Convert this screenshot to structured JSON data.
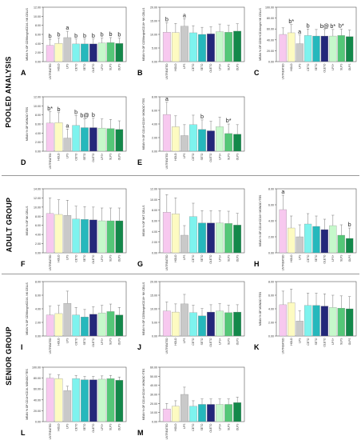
{
  "groups": [
    {
      "label": "POOLED ANALYSIS"
    },
    {
      "label": "ADULT GROUP"
    },
    {
      "label": "SENIOR GROUP"
    }
  ],
  "colors": [
    "#f7c8ef",
    "#fdfbc1",
    "#c9c9c9",
    "#7ef3ee",
    "#26b8bc",
    "#23277a",
    "#c6f8cb",
    "#54c777",
    "#13884a"
  ],
  "categories": [
    "UNTREATED",
    "HOLD",
    "LPS",
    "CETO",
    "SETO",
    "OLETO",
    "LPS+",
    "SLPS",
    "OLPS"
  ],
  "chart_data": [
    {
      "type": "bar",
      "letter": "A",
      "ylabel": "MEAN % OF CD56bright/CD16- NK CELLS",
      "ylim": [
        0,
        12
      ],
      "ticks": [
        "0.00",
        "2.00",
        "4.00",
        "6.00",
        "8.00",
        "10.00",
        "12.00"
      ],
      "values": [
        3.6,
        4.0,
        5.3,
        3.9,
        3.9,
        3.9,
        4.1,
        4.2,
        4.0
      ],
      "errors": [
        1.3,
        1.2,
        1.4,
        1.1,
        1.1,
        1.1,
        1.1,
        1.1,
        1.2
      ],
      "annotations": [
        "b",
        "b",
        "a",
        "b",
        "b",
        "b",
        "b",
        "b",
        "b"
      ]
    },
    {
      "type": "bar",
      "letter": "B",
      "ylabel": "MEAN % OF CD56bright/CD16+ NK CELLS",
      "ylim": [
        0,
        20
      ],
      "ticks": [
        "0.00",
        "5.00",
        "10.00",
        "15.00",
        "20.00"
      ],
      "values": [
        10.8,
        10.7,
        13.0,
        10.6,
        10.0,
        10.2,
        11.0,
        10.8,
        11.2
      ],
      "errors": [
        3.5,
        3.3,
        2.8,
        2.6,
        2.6,
        2.6,
        2.8,
        2.5,
        2.7
      ],
      "annotations": [
        "b",
        "",
        "a",
        "",
        "",
        "",
        "",
        "",
        ""
      ]
    },
    {
      "type": "bar",
      "letter": "C",
      "ylabel": "MEAN % OF CD56+CD16bright NK CELLS",
      "ylim": [
        0,
        100
      ],
      "ticks": [
        "0.00",
        "20.00",
        "40.00",
        "60.00",
        "80.00",
        "100.00"
      ],
      "values": [
        50,
        53,
        33,
        48,
        47,
        47,
        47,
        48,
        46
      ],
      "errors": [
        12,
        15,
        16,
        12,
        12,
        12,
        12,
        12,
        12
      ],
      "annotations": [
        "",
        "b*",
        "a",
        "b",
        "",
        "b@",
        "b*",
        "b*",
        ""
      ]
    },
    {
      "type": "bar",
      "letter": "D",
      "ylabel": "MEAN % OF MONOCYTES",
      "ylim": [
        0,
        12
      ],
      "ticks": [
        "0.00",
        "2.00",
        "4.00",
        "6.00",
        "8.00",
        "10.00",
        "12.00"
      ],
      "values": [
        6.2,
        6.3,
        2.9,
        5.7,
        5.2,
        5.2,
        5.1,
        5.0,
        4.8
      ],
      "errors": [
        2.5,
        2.2,
        2.0,
        2.2,
        2.0,
        2.1,
        2.0,
        2.0,
        1.9
      ],
      "annotations": [
        "b*",
        "b",
        "a",
        "b",
        "b@",
        "b",
        "",
        "",
        ""
      ]
    },
    {
      "type": "bar",
      "letter": "E",
      "ylabel": "MEAN % OF CD14+CD16+ MONOCYTES",
      "ylim": [
        0,
        8
      ],
      "ticks": [
        "0.00",
        "2.00",
        "4.00",
        "6.00",
        "8.00"
      ],
      "values": [
        5.4,
        3.6,
        2.3,
        3.9,
        3.2,
        3.0,
        3.6,
        2.6,
        2.5
      ],
      "errors": [
        1.8,
        1.6,
        1.6,
        1.4,
        1.4,
        1.4,
        1.4,
        1.4,
        1.4
      ],
      "annotations": [
        "a",
        "",
        "",
        "",
        "b",
        "",
        "",
        "b*",
        ""
      ]
    },
    {
      "type": "bar",
      "letter": "F",
      "ylabel": "MEAN % OF NK CELLS",
      "ylim": [
        0,
        14
      ],
      "ticks": [
        "0.00",
        "2.00",
        "4.00",
        "6.00",
        "8.00",
        "10.00",
        "12.00",
        "14.00"
      ],
      "values": [
        8.6,
        8.4,
        8.2,
        7.4,
        7.3,
        7.2,
        7.0,
        7.0,
        7.0
      ],
      "errors": [
        3.4,
        3.2,
        3.3,
        2.8,
        2.8,
        2.8,
        2.8,
        2.8,
        2.8
      ],
      "annotations": [
        "",
        "",
        "",
        "",
        "",
        "",
        "",
        "",
        ""
      ]
    },
    {
      "type": "bar",
      "letter": "G",
      "ylabel": "MEAN % OF NKT CELLS",
      "ylim": [
        0,
        12
      ],
      "ticks": [
        "0.00",
        "2.00",
        "4.00",
        "6.00",
        "8.00",
        "10.00",
        "12.00"
      ],
      "values": [
        7.6,
        7.3,
        3.3,
        6.8,
        5.6,
        5.6,
        5.6,
        5.5,
        5.2
      ],
      "errors": [
        3.3,
        3.0,
        1.8,
        2.5,
        2.3,
        2.3,
        2.3,
        2.3,
        2.2
      ],
      "annotations": [
        "",
        "",
        "",
        "",
        "",
        "",
        "",
        "",
        ""
      ]
    },
    {
      "type": "bar",
      "letter": "H",
      "ylabel": "MEAN % OF CD14+CD16+ MONOCYTES",
      "ylim": [
        0,
        8
      ],
      "ticks": [
        "0.00",
        "2.00",
        "4.00",
        "6.00",
        "8.00"
      ],
      "values": [
        5.4,
        3.1,
        2.0,
        3.6,
        3.3,
        2.9,
        3.4,
        2.2,
        1.8
      ],
      "errors": [
        1.8,
        1.5,
        1.5,
        1.3,
        1.3,
        1.3,
        1.3,
        1.3,
        1.3
      ],
      "annotations": [
        "a",
        "",
        "",
        "",
        "",
        "",
        "",
        "",
        "b"
      ]
    },
    {
      "type": "bar",
      "letter": "I",
      "ylabel": "MEAN % OF CD56bright/CD16- NK CELLS",
      "ylim": [
        0,
        8
      ],
      "ticks": [
        "0.00",
        "2.00",
        "4.00",
        "6.00",
        "8.00"
      ],
      "values": [
        3.1,
        3.3,
        4.8,
        3.1,
        2.8,
        3.2,
        3.4,
        3.6,
        3.1
      ],
      "errors": [
        1.3,
        1.2,
        1.8,
        1.1,
        1.1,
        1.1,
        1.1,
        1.1,
        1.1
      ],
      "annotations": [
        "",
        "",
        "",
        "",
        "",
        "",
        "",
        "",
        ""
      ]
    },
    {
      "type": "bar",
      "letter": "J",
      "ylabel": "MEAN % OF CD56bright/CD16+ NK CELLS",
      "ylim": [
        0,
        20
      ],
      "ticks": [
        "0.00",
        "5.00",
        "10.00",
        "15.00",
        "20.00"
      ],
      "values": [
        9.2,
        8.8,
        11.8,
        8.6,
        7.4,
        8.8,
        9.2,
        8.6,
        8.8
      ],
      "errors": [
        3.3,
        3.0,
        3.5,
        2.7,
        2.7,
        2.7,
        2.7,
        2.7,
        2.7
      ],
      "annotations": [
        "",
        "",
        "",
        "",
        "",
        "",
        "",
        "",
        ""
      ]
    },
    {
      "type": "bar",
      "letter": "K",
      "ylabel": "MEAN % OF MONOCYTES",
      "ylim": [
        0,
        8
      ],
      "ticks": [
        "0.00",
        "2.00",
        "4.00",
        "6.00",
        "8.00"
      ],
      "values": [
        4.6,
        4.9,
        2.2,
        4.5,
        4.5,
        4.4,
        4.2,
        4.1,
        4.0
      ],
      "errors": [
        2.0,
        2.0,
        1.5,
        1.8,
        1.8,
        1.8,
        1.8,
        1.8,
        1.8
      ],
      "annotations": [
        "",
        "",
        "",
        "",
        "",
        "",
        "",
        "",
        ""
      ]
    },
    {
      "type": "bar",
      "letter": "L",
      "ylabel": "MEAN % OF CD14+CD16- MONOCYTES",
      "ylim": [
        0,
        100
      ],
      "ticks": [
        "0.00",
        "20.00",
        "40.00",
        "60.00",
        "80.00",
        "100.00"
      ],
      "values": [
        80,
        79,
        57,
        79,
        77,
        77,
        78,
        79,
        76
      ],
      "errors": [
        7,
        7,
        8,
        6,
        6,
        6,
        6,
        6,
        6
      ],
      "annotations": [
        "",
        "",
        "",
        "",
        "",
        "",
        "",
        "",
        ""
      ]
    },
    {
      "type": "bar",
      "letter": "M",
      "ylabel": "MEAN % OF CD14+CD16+ MONOCYTES",
      "ylim": [
        0,
        60
      ],
      "ticks": [
        "0.00",
        "10.00",
        "20.00",
        "30.00",
        "40.00",
        "50.00",
        "60.00"
      ],
      "values": [
        14,
        17,
        30,
        17,
        19,
        19,
        19,
        19,
        21
      ],
      "errors": [
        6,
        6,
        8,
        6,
        6,
        6,
        6,
        6,
        6
      ],
      "annotations": [
        "",
        "",
        "",
        "",
        "",
        "",
        "",
        "",
        ""
      ]
    }
  ]
}
